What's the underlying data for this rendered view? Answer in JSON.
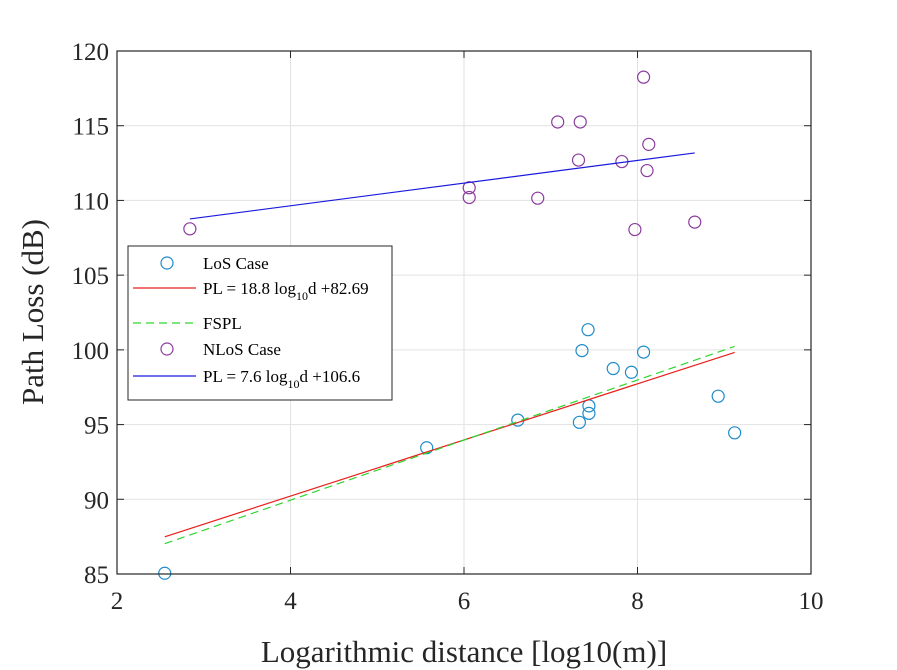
{
  "chart_data": {
    "type": "scatter",
    "title": "",
    "xlabel": "Logarithmic distance [log10(m)]",
    "ylabel": "Path Loss (dB)",
    "xlim": [
      2,
      10
    ],
    "ylim": [
      85,
      120
    ],
    "xticks": [
      2,
      4,
      6,
      8,
      10
    ],
    "yticks": [
      85,
      90,
      95,
      100,
      105,
      110,
      115,
      120
    ],
    "x_tick_labels": [
      "2",
      "4",
      "6",
      "8",
      "10"
    ],
    "y_tick_labels": [
      "85",
      "90",
      "95",
      "100",
      "105",
      "110",
      "115",
      "120"
    ],
    "grid": true,
    "legend_position": "middle-left",
    "colors": {
      "los": "#1f8bc9",
      "nlos": "#8b3c9e",
      "los_fit": "#e8201c",
      "fspl": "#2fd52f",
      "nlos_fit": "#1a1adf",
      "grid": "#e2e2e2",
      "axes": "#262626"
    },
    "series": [
      {
        "name": "LoS Case",
        "kind": "markers",
        "color": "#1f8bc9",
        "points": [
          [
            2.55,
            85.05
          ],
          [
            5.57,
            93.45
          ],
          [
            6.62,
            95.3
          ],
          [
            7.33,
            95.15
          ],
          [
            7.36,
            99.95
          ],
          [
            7.43,
            101.35
          ],
          [
            7.44,
            96.25
          ],
          [
            7.44,
            95.75
          ],
          [
            7.72,
            98.75
          ],
          [
            7.93,
            98.5
          ],
          [
            8.07,
            99.85
          ],
          [
            8.93,
            96.9
          ],
          [
            9.12,
            94.45
          ]
        ]
      },
      {
        "name": "PL = 18.8 log10d +82.69",
        "kind": "line",
        "color": "#e8201c",
        "dash": "",
        "points": [
          [
            2.55,
            87.49
          ],
          [
            9.12,
            99.83
          ]
        ]
      },
      {
        "name": "FSPL",
        "kind": "line",
        "color": "#2fd52f",
        "dash": "8,5",
        "points": [
          [
            2.55,
            87.03
          ],
          [
            9.12,
            100.23
          ]
        ]
      },
      {
        "name": "NLoS Case",
        "kind": "markers",
        "color": "#8b3c9e",
        "points": [
          [
            2.84,
            108.1
          ],
          [
            6.06,
            110.85
          ],
          [
            6.06,
            110.2
          ],
          [
            6.85,
            110.15
          ],
          [
            7.08,
            115.25
          ],
          [
            7.32,
            112.7
          ],
          [
            7.34,
            115.25
          ],
          [
            7.82,
            112.6
          ],
          [
            7.97,
            108.05
          ],
          [
            8.07,
            118.25
          ],
          [
            8.11,
            112.0
          ],
          [
            8.13,
            113.75
          ],
          [
            8.66,
            108.55
          ]
        ]
      },
      {
        "name": "PL = 7.6 log10d +106.6",
        "kind": "line",
        "color": "#1a1adf",
        "dash": "",
        "points": [
          [
            2.84,
            108.76
          ],
          [
            8.66,
            113.18
          ]
        ]
      }
    ],
    "legend": [
      {
        "label_main": "LoS Case",
        "label_sub": "",
        "label_tail": "",
        "symbol": "marker",
        "color": "#1f8bc9"
      },
      {
        "label_main": "PL = 18.8 log",
        "label_sub": "10",
        "label_tail": "d +82.69",
        "symbol": "line",
        "color": "#e8201c",
        "dash": ""
      },
      {
        "label_main": "FSPL",
        "label_sub": "",
        "label_tail": "",
        "symbol": "line",
        "color": "#2fd52f",
        "dash": "8,5"
      },
      {
        "label_main": "NLoS Case",
        "label_sub": "",
        "label_tail": "",
        "symbol": "marker",
        "color": "#8b3c9e"
      },
      {
        "label_main": "PL = 7.6 log",
        "label_sub": "10",
        "label_tail": "d +106.6",
        "symbol": "line",
        "color": "#1a1adf",
        "dash": ""
      }
    ]
  }
}
